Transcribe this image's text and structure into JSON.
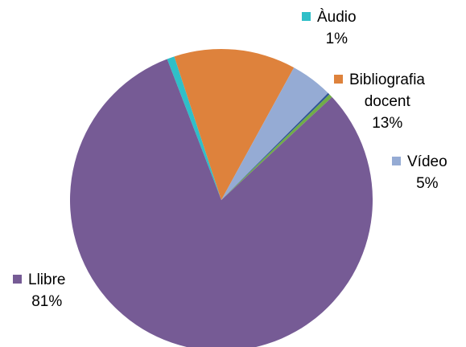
{
  "chart_data": {
    "type": "pie",
    "title": "",
    "slices": [
      {
        "label": "Àudio",
        "label_lines": [
          "Àudio"
        ],
        "percent_label": "1%",
        "value": 0.8,
        "color": "#2FBFC8"
      },
      {
        "label": "Bibliografia docent",
        "label_lines": [
          "Bibliografia",
          "docent"
        ],
        "percent_label": "13%",
        "value": 13.0,
        "color": "#DE823C"
      },
      {
        "label": "Vídeo",
        "label_lines": [
          "Vídeo"
        ],
        "percent_label": "5%",
        "value": 4.5,
        "color": "#95ABD4"
      },
      {
        "label": "",
        "label_lines": [],
        "percent_label": "",
        "value": 0.2,
        "color": "#2F5597"
      },
      {
        "label": "",
        "label_lines": [],
        "percent_label": "",
        "value": 0.4,
        "color": "#70AD47"
      },
      {
        "label": "Llibre",
        "label_lines": [
          "Llibre"
        ],
        "percent_label": "81%",
        "value": 81.1,
        "color": "#765B95"
      }
    ]
  }
}
